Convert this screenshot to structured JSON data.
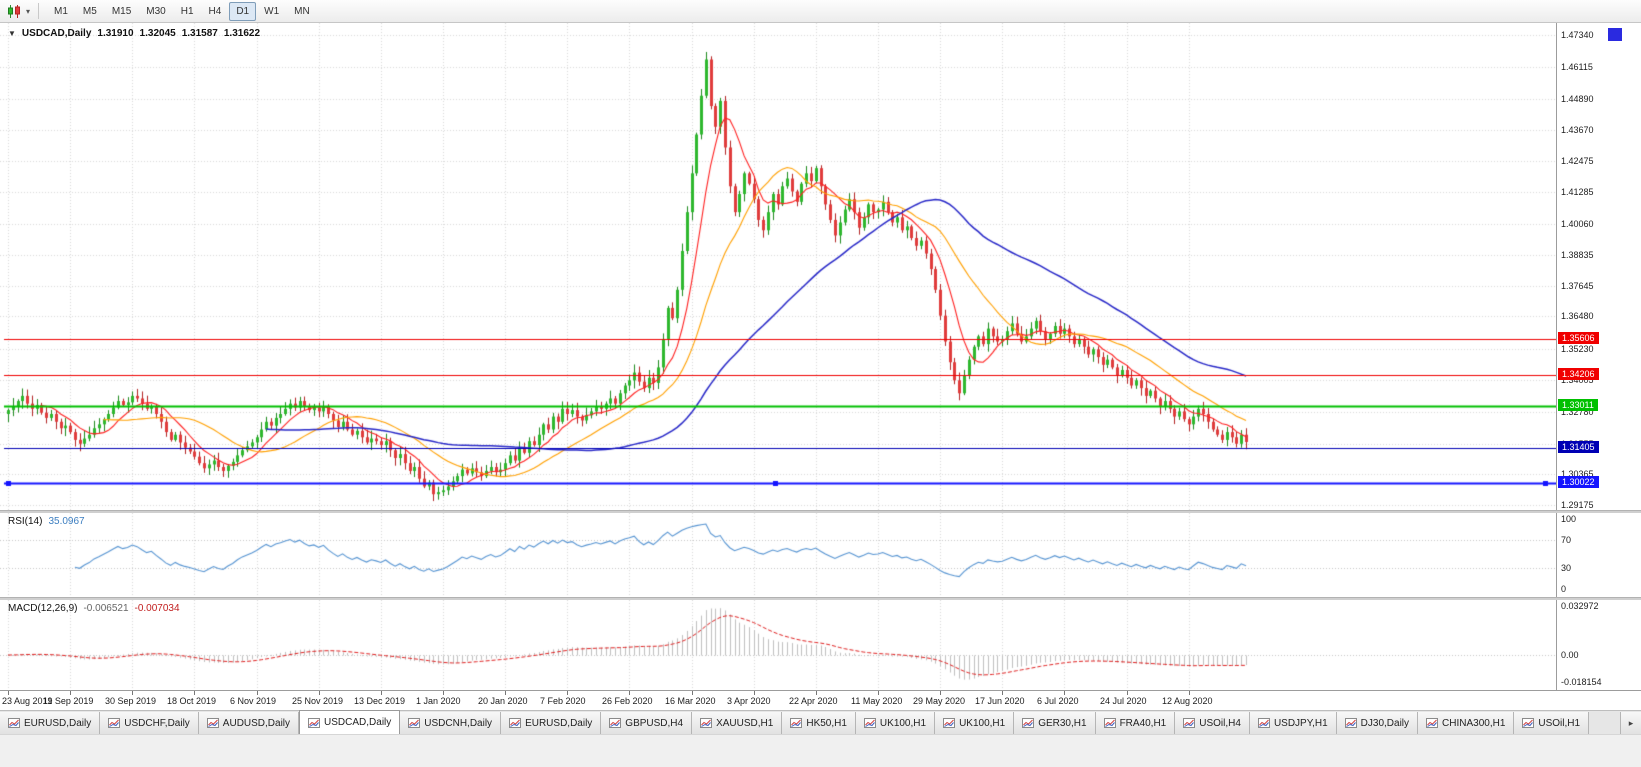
{
  "icons": {
    "header_caret": "▼",
    "dropdown_caret": "▾",
    "tab_scroll_right": "▸",
    "chart_type_icon": "candlestick-chart"
  },
  "toolbar": {
    "timeframes": [
      "M1",
      "M5",
      "M15",
      "M30",
      "H1",
      "H4",
      "D1",
      "W1",
      "MN"
    ],
    "active_timeframe": "D1"
  },
  "chart_header": {
    "symbol": "USDCAD,Daily",
    "open": "1.31910",
    "high": "1.32045",
    "low": "1.31587",
    "close": "1.31622"
  },
  "rsi_panel": {
    "name": "RSI(14)",
    "value": "35.0967"
  },
  "macd_panel": {
    "name": "MACD(12,26,9)",
    "value_main": "-0.006521",
    "value_signal": "-0.007034"
  },
  "tabs": {
    "active_index": 3,
    "items": [
      "EURUSD,Daily",
      "USDCHF,Daily",
      "AUDUSD,Daily",
      "USDCAD,Daily",
      "USDCNH,Daily",
      "EURUSD,Daily",
      "GBPUSD,H4",
      "XAUUSD,H1",
      "HK50,H1",
      "UK100,H1",
      "UK100,H1",
      "GER30,H1",
      "FRA40,H1",
      "USOil,H4",
      "USDJPY,H1",
      "DJ30,Daily",
      "CHINA300,H1",
      "USOil,H1"
    ]
  },
  "chart_data": {
    "type": "candlestick",
    "symbol": "USDCAD",
    "timeframe": "Daily",
    "ylim": [
      1.2899,
      1.4781
    ],
    "y_tick_labels": [
      "1.47340",
      "1.46115",
      "1.44890",
      "1.43670",
      "1.42475",
      "1.41285",
      "1.40060",
      "1.38835",
      "1.37645",
      "1.36480",
      "1.35230",
      "1.34005",
      "1.32780",
      "1.31555",
      "1.30365",
      "1.29175"
    ],
    "x_tick_labels": [
      "23 Aug 2019",
      "11 Sep 2019",
      "30 Sep 2019",
      "18 Oct 2019",
      "6 Nov 2019",
      "25 Nov 2019",
      "13 Dec 2019",
      "1 Jan 2020",
      "20 Jan 2020",
      "7 Feb 2020",
      "26 Feb 2020",
      "16 Mar 2020",
      "3 Apr 2020",
      "22 Apr 2020",
      "11 May 2020",
      "29 May 2020",
      "17 Jun 2020",
      "6 Jul 2020",
      "24 Jul 2020",
      "12 Aug 2020"
    ],
    "candles_per_x_tick": 13,
    "first_open": 1.327,
    "closes": [
      1.3285,
      1.33,
      1.332,
      1.334,
      1.331,
      1.329,
      1.3305,
      1.3275,
      1.3255,
      1.327,
      1.324,
      1.3215,
      1.3225,
      1.32,
      1.317,
      1.3155,
      1.3175,
      1.319,
      1.3215,
      1.323,
      1.325,
      1.327,
      1.3295,
      1.332,
      1.3305,
      1.3315,
      1.334,
      1.333,
      1.331,
      1.329,
      1.33,
      1.327,
      1.324,
      1.32,
      1.317,
      1.319,
      1.316,
      1.314,
      1.3125,
      1.3105,
      1.308,
      1.306,
      1.3075,
      1.309,
      1.3065,
      1.305,
      1.307,
      1.3085,
      1.311,
      1.313,
      1.3145,
      1.316,
      1.318,
      1.321,
      1.324,
      1.3225,
      1.3255,
      1.327,
      1.329,
      1.331,
      1.3295,
      1.332,
      1.33,
      1.3285,
      1.3295,
      1.328,
      1.33,
      1.327,
      1.3245,
      1.322,
      1.324,
      1.321,
      1.319,
      1.3205,
      1.318,
      1.316,
      1.3175,
      1.3165,
      1.315,
      1.3165,
      1.313,
      1.31,
      1.3115,
      1.308,
      1.305,
      1.3065,
      1.302,
      1.299,
      1.3005,
      1.296,
      1.2968,
      1.2975,
      1.299,
      1.301,
      1.303,
      1.3055,
      1.304,
      1.306,
      1.3045,
      1.303,
      1.305,
      1.3065,
      1.3045,
      1.3055,
      1.308,
      1.311,
      1.309,
      1.314,
      1.312,
      1.3165,
      1.315,
      1.319,
      1.323,
      1.321,
      1.326,
      1.324,
      1.329,
      1.327,
      1.3285,
      1.326,
      1.3245,
      1.3265,
      1.328,
      1.33,
      1.329,
      1.331,
      1.333,
      1.331,
      1.335,
      1.338,
      1.34,
      1.343,
      1.3395,
      1.337,
      1.341,
      1.339,
      1.345,
      1.356,
      1.368,
      1.364,
      1.375,
      1.39,
      1.405,
      1.42,
      1.435,
      1.45,
      1.464,
      1.446,
      1.438,
      1.448,
      1.43,
      1.415,
      1.405,
      1.412,
      1.42,
      1.416,
      1.41,
      1.402,
      1.398,
      1.405,
      1.412,
      1.408,
      1.415,
      1.418,
      1.413,
      1.409,
      1.416,
      1.42,
      1.417,
      1.422,
      1.415,
      1.408,
      1.402,
      1.396,
      1.401,
      1.406,
      1.41,
      1.405,
      1.399,
      1.403,
      1.408,
      1.405,
      1.406,
      1.409,
      1.405,
      1.401,
      1.403,
      1.398,
      1.3995,
      1.395,
      1.392,
      1.394,
      1.389,
      1.383,
      1.375,
      1.365,
      1.355,
      1.347,
      1.34,
      1.335,
      1.342,
      1.348,
      1.353,
      1.357,
      1.354,
      1.36,
      1.357,
      1.355,
      1.356,
      1.359,
      1.362,
      1.358,
      1.355,
      1.357,
      1.36,
      1.363,
      1.359,
      1.356,
      1.358,
      1.361,
      1.358,
      1.36,
      1.357,
      1.354,
      1.356,
      1.353,
      1.35,
      1.352,
      1.349,
      1.346,
      1.348,
      1.345,
      1.342,
      1.344,
      1.341,
      1.338,
      1.34,
      1.337,
      1.334,
      1.336,
      1.333,
      1.33,
      1.332,
      1.329,
      1.326,
      1.328,
      1.325,
      1.323,
      1.326,
      1.329,
      1.327,
      1.324,
      1.321,
      1.319,
      1.317,
      1.32,
      1.318,
      1.3155,
      1.319,
      1.3162
    ],
    "bull_color": "#2eb82e",
    "bear_color": "#e03c3c",
    "overlays": [
      {
        "name": "SMA fast",
        "period": 8,
        "color": "#ff2020"
      },
      {
        "name": "SMA mid",
        "period": 21,
        "color": "#ffa000"
      },
      {
        "name": "SMA slow",
        "period": 55,
        "color": "#2828c8"
      }
    ],
    "horizontal_lines": [
      {
        "label": "1.35606",
        "value": 1.35606,
        "color": "#f00000",
        "width": 1,
        "handles": false
      },
      {
        "label": "1.34206",
        "value": 1.34206,
        "color": "#f00000",
        "width": 1,
        "handles": false
      },
      {
        "label": "1.33011",
        "value": 1.33011,
        "color": "#00c000",
        "width": 2,
        "handles": false
      },
      {
        "label": "1.31405",
        "value": 1.31405,
        "color": "#0000b4",
        "width": 1,
        "handles": false
      },
      {
        "label": "1.30022",
        "value": 1.30022,
        "color": "#1414ff",
        "width": 2,
        "handles": true
      }
    ],
    "rsi": {
      "period": 14,
      "last": 35.0967,
      "range": [
        0,
        100
      ],
      "guide_levels": [
        70,
        30
      ],
      "axis_labels": [
        "100",
        "70",
        "30",
        "0"
      ],
      "color": "#5694d2"
    },
    "macd": {
      "fast": 12,
      "slow": 26,
      "signal": 9,
      "last_main": -0.006521,
      "last_signal": -0.007034,
      "range": [
        -0.018154,
        0.032972
      ],
      "axis_labels": [
        "0.032972",
        "0.00",
        "-0.018154"
      ],
      "histogram_color": "#bfbfbf",
      "signal_color": "#e02020"
    }
  }
}
